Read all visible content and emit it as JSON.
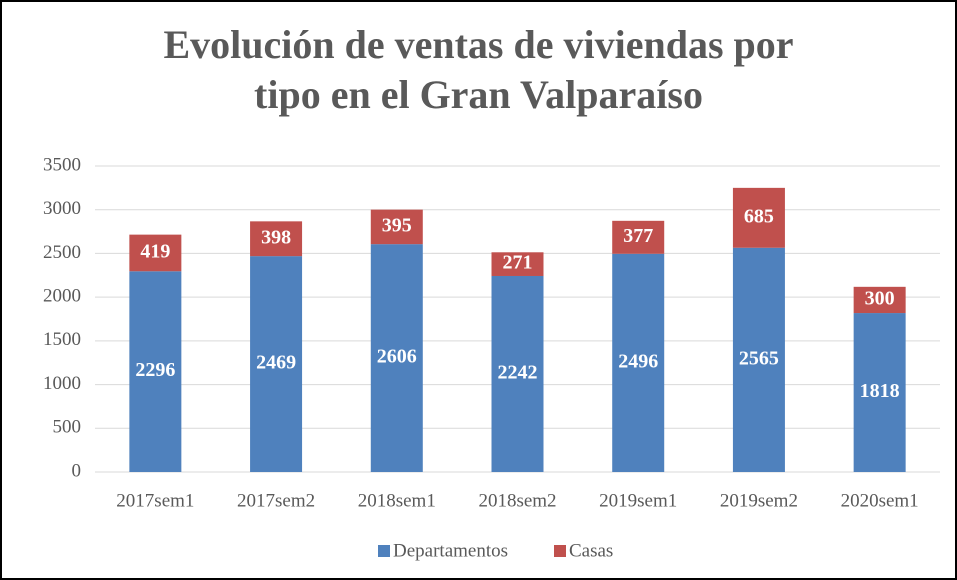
{
  "chart_data": {
    "type": "stacked_bar",
    "title": "Evolución de ventas de viviendas por tipo en el Gran Valparaíso",
    "categories": [
      "2017sem1",
      "2017sem2",
      "2018sem1",
      "2018sem2",
      "2019sem1",
      "2019sem2",
      "2020sem1"
    ],
    "series": [
      {
        "name": "Departamentos",
        "color": "#4f81bd",
        "values": [
          2296,
          2469,
          2606,
          2242,
          2496,
          2565,
          1818
        ]
      },
      {
        "name": "Casas",
        "color": "#c0504d",
        "values": [
          419,
          398,
          395,
          271,
          377,
          685,
          300
        ]
      }
    ],
    "ylim": [
      0,
      3500
    ],
    "yticks": [
      0,
      500,
      1000,
      1500,
      2000,
      2500,
      3000,
      3500
    ],
    "grid": true,
    "legend": "bottom"
  }
}
